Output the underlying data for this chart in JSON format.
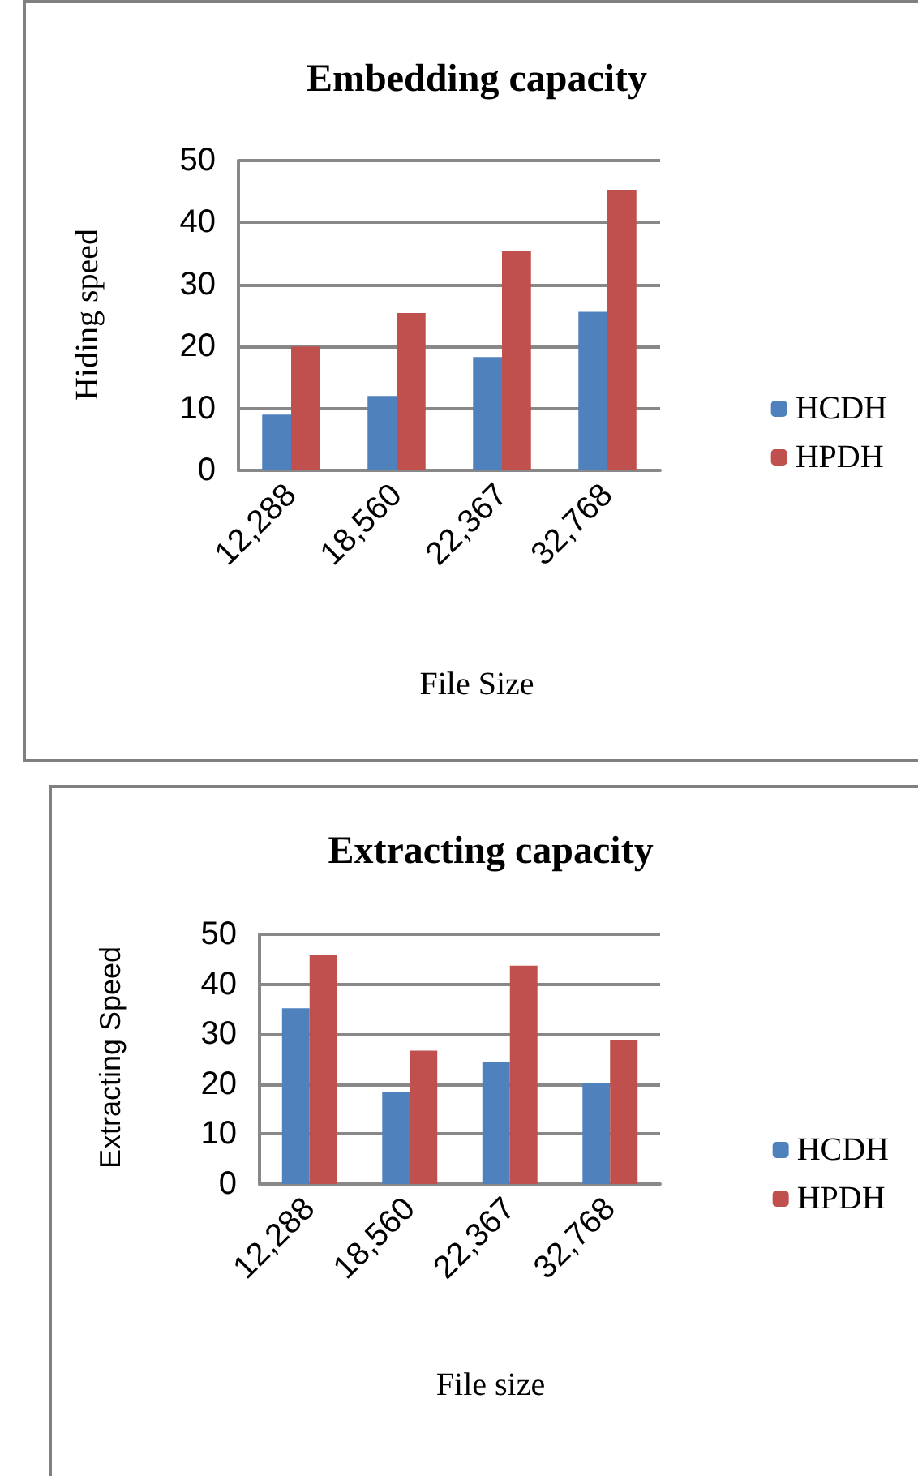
{
  "chart_data": [
    {
      "type": "bar",
      "title": "Embedding capacity",
      "xlabel": "File Size",
      "ylabel": "Hiding speed",
      "categories": [
        "12,288",
        "18,560",
        "22,367",
        "32,768"
      ],
      "series": [
        {
          "name": "HCDH",
          "color": "#4f81bd",
          "values": [
            9,
            12,
            18.3,
            25.6
          ]
        },
        {
          "name": "HPDH",
          "color": "#c0504d",
          "values": [
            20,
            25.4,
            35.4,
            45.3
          ]
        }
      ],
      "ylim": [
        0,
        50
      ],
      "yticks": [
        0,
        10,
        20,
        30,
        40,
        50
      ],
      "grid": "y",
      "legend": "right"
    },
    {
      "type": "bar",
      "title": "Extracting capacity",
      "xlabel": "File size",
      "ylabel": "Extracting Speed",
      "categories": [
        "12,288",
        "18,560",
        "22,367",
        "32,768"
      ],
      "series": [
        {
          "name": "HCDH",
          "color": "#4f81bd",
          "values": [
            35.2,
            18.5,
            24.5,
            20.2
          ]
        },
        {
          "name": "HPDH",
          "color": "#c0504d",
          "values": [
            45.8,
            26.7,
            43.7,
            28.9
          ]
        }
      ],
      "ylim": [
        0,
        50
      ],
      "yticks": [
        0,
        10,
        20,
        30,
        40,
        50
      ],
      "grid": "y",
      "legend": "right"
    }
  ]
}
